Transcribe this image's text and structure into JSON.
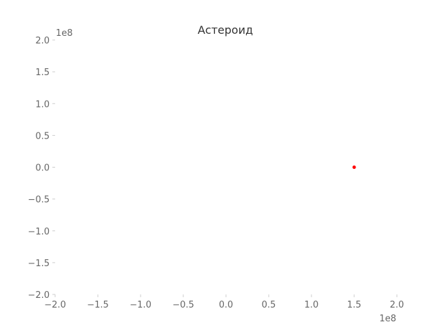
{
  "chart_data": {
    "type": "scatter",
    "title": "Астероид",
    "xlabel": "",
    "ylabel": "",
    "xlim": [
      -200000000,
      200000000
    ],
    "ylim": [
      -200000000,
      200000000
    ],
    "x_offset_label": "1e8",
    "y_offset_label": "1e8",
    "x_ticks": [
      -2.0,
      -1.5,
      -1.0,
      -0.5,
      0.0,
      0.5,
      1.0,
      1.5,
      2.0
    ],
    "y_ticks": [
      -2.0,
      -1.5,
      -1.0,
      -0.5,
      0.0,
      0.5,
      1.0,
      1.5,
      2.0
    ],
    "x_tick_labels": [
      "−2.0",
      "−1.5",
      "−1.0",
      "−0.5",
      "0.0",
      "0.5",
      "1.0",
      "1.5",
      "2.0"
    ],
    "y_tick_labels": [
      "−2.0",
      "−1.5",
      "−1.0",
      "−0.5",
      "0.0",
      "0.5",
      "1.0",
      "1.5",
      "2.0"
    ],
    "grid": false,
    "series": [
      {
        "x": [
          150000000
        ],
        "y": [
          0
        ],
        "color": "#ff0000"
      }
    ]
  }
}
